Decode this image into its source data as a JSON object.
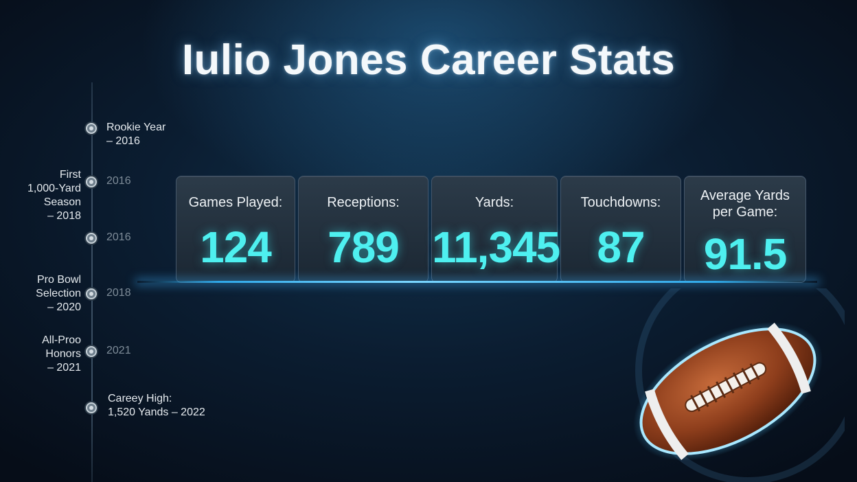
{
  "title": "Iulio Jones Career Stats",
  "timeline": [
    {
      "label": "Rookie Year\n– 2016",
      "year": ""
    },
    {
      "label": "First\n1,000-Yard\nSeason\n– 2018",
      "year": "2016"
    },
    {
      "label": "",
      "year": "2016"
    },
    {
      "label": "Pro Bowl\nSelection\n– 2020",
      "year": "2018"
    },
    {
      "label": "All-Proo\nHonors\n– 2021",
      "year": "2021"
    },
    {
      "label": "Careey High:\n1,520 Yands – 2022",
      "year": ""
    }
  ],
  "stats": [
    {
      "label": "Games Played:",
      "value": "124"
    },
    {
      "label": "Receptions:",
      "value": "789"
    },
    {
      "label": "Yards:",
      "value": "11,345"
    },
    {
      "label": "Touchdowns:",
      "value": "87"
    },
    {
      "label": "Average Yards\nper Game:",
      "value": "91.5"
    }
  ],
  "colors": {
    "accent": "#4ef0f0",
    "background": "#0b1d31",
    "glow": "#2fa8e8"
  },
  "icons": {
    "football": "football-icon",
    "timeline_dot": "timeline-dot-icon"
  }
}
